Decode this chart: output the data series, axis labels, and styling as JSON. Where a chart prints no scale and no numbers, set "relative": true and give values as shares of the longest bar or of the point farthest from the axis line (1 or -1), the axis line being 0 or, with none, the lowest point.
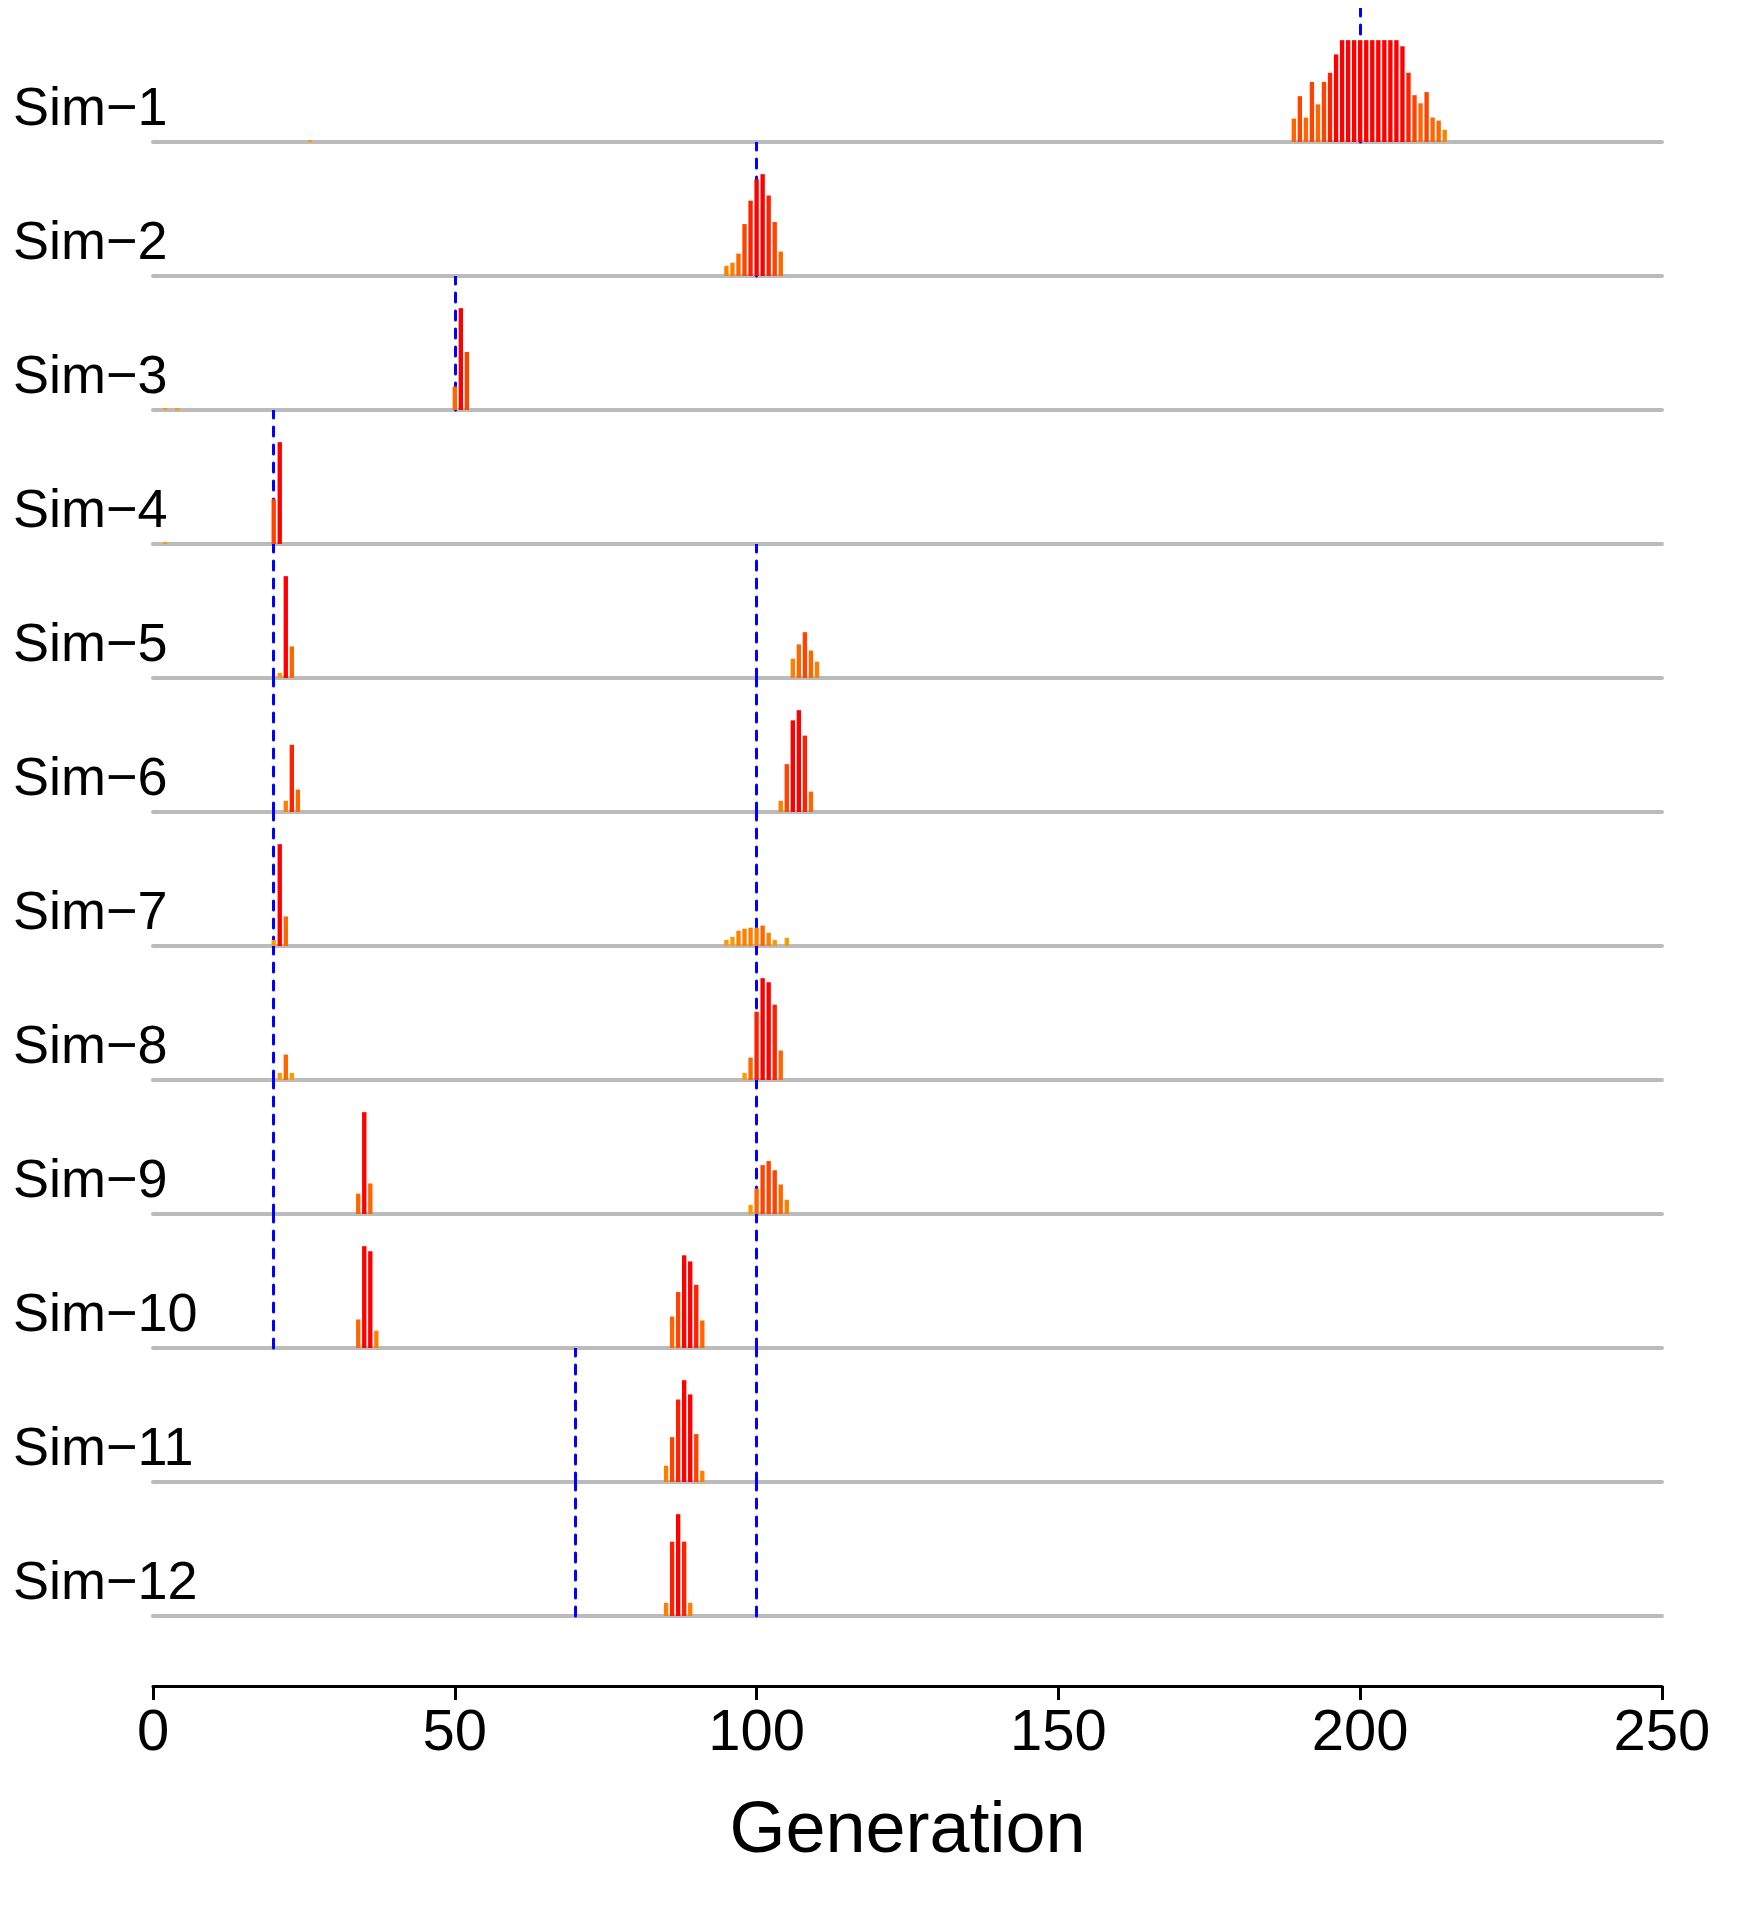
{
  "chart_data": [
    {
      "type": "bar",
      "title": "Sim−1",
      "relative": true,
      "xlim": [
        0,
        250
      ],
      "tick_labels": false,
      "x": [
        26,
        189,
        190,
        191,
        192,
        193,
        194,
        195,
        196,
        197,
        198,
        199,
        200,
        201,
        202,
        203,
        204,
        205,
        206,
        207,
        208,
        209,
        210,
        211,
        212,
        213,
        214
      ],
      "values": [
        0.02,
        0.23,
        0.45,
        0.24,
        0.59,
        0.37,
        0.59,
        0.68,
        0.86,
        1,
        1,
        1,
        1,
        1,
        1,
        1,
        1,
        1,
        1,
        0.94,
        0.68,
        0.46,
        0.38,
        0.49,
        0.24,
        0.21,
        0.12
      ],
      "colors": [
        "#ff9900",
        "#ff6600",
        "#ff4400",
        "#ff6600",
        "#ff4400",
        "#ff6600",
        "#ff4400",
        "#ff2200",
        "#ff0000",
        "#ff0000",
        "#ff0000",
        "#ff0000",
        "#ff0000",
        "#ff0000",
        "#ff0000",
        "#ff0000",
        "#ff0000",
        "#ff0000",
        "#ff0000",
        "#ff0000",
        "#ff2200",
        "#ff4400",
        "#ff6600",
        "#ff4400",
        "#ff6600",
        "#ff6600",
        "#ff8000"
      ],
      "ref_lines": [
        {
          "axis": "x",
          "value": 200,
          "color": "#0000ff",
          "line_style": "dashed"
        }
      ]
    },
    {
      "type": "bar",
      "title": "Sim−2",
      "relative": true,
      "xlim": [
        0,
        250
      ],
      "tick_labels": false,
      "x": [
        95,
        96,
        97,
        98,
        99,
        100,
        101,
        102,
        103,
        104
      ],
      "values": [
        0.1,
        0.13,
        0.22,
        0.51,
        0.74,
        0.95,
        1,
        0.79,
        0.53,
        0.24
      ],
      "colors": [
        "#ff8000",
        "#ff8000",
        "#ff6600",
        "#ff4400",
        "#ff2200",
        "#ff0000",
        "#ff0000",
        "#ff2200",
        "#ff4400",
        "#ff6600"
      ],
      "ref_lines": [
        {
          "axis": "x",
          "value": 100,
          "color": "#0000ff",
          "line_style": "dashed"
        }
      ]
    },
    {
      "type": "bar",
      "title": "Sim−3",
      "relative": true,
      "xlim": [
        0,
        250
      ],
      "tick_labels": false,
      "x": [
        2,
        4,
        50,
        51,
        52
      ],
      "values": [
        0.02,
        0.02,
        0.23,
        1,
        0.57
      ],
      "colors": [
        "#ff9900",
        "#ff9900",
        "#ff6600",
        "#ff0000",
        "#ff4400"
      ],
      "ref_lines": [
        {
          "axis": "x",
          "value": 50,
          "color": "#0000ff",
          "line_style": "dashed"
        }
      ]
    },
    {
      "type": "bar",
      "title": "Sim−4",
      "relative": true,
      "xlim": [
        0,
        250
      ],
      "tick_labels": false,
      "x": [
        2,
        20,
        21
      ],
      "values": [
        0.02,
        0.44,
        1
      ],
      "colors": [
        "#ff9900",
        "#ff4400",
        "#ff0000"
      ],
      "ref_lines": [
        {
          "axis": "x",
          "value": 20,
          "color": "#0000ff",
          "line_style": "dashed"
        }
      ]
    },
    {
      "type": "bar",
      "title": "Sim−5",
      "relative": true,
      "xlim": [
        0,
        250
      ],
      "tick_labels": false,
      "x": [
        21,
        22,
        23,
        106,
        107,
        108,
        109,
        110
      ],
      "values": [
        0.05,
        1,
        0.31,
        0.19,
        0.33,
        0.45,
        0.27,
        0.16
      ],
      "colors": [
        "#ff9900",
        "#ff0000",
        "#ff6600",
        "#ff8000",
        "#ff6600",
        "#ff4400",
        "#ff6600",
        "#ff8000"
      ],
      "ref_lines": [
        {
          "axis": "x",
          "value": 20,
          "color": "#0000ff",
          "line_style": "dashed"
        },
        {
          "axis": "x",
          "value": 100,
          "color": "#0000ff",
          "line_style": "dashed"
        }
      ]
    },
    {
      "type": "bar",
      "title": "Sim−6",
      "relative": true,
      "xlim": [
        0,
        250
      ],
      "tick_labels": false,
      "x": [
        22,
        23,
        24,
        104,
        105,
        106,
        107,
        108,
        109
      ],
      "values": [
        0.11,
        0.66,
        0.22,
        0.11,
        0.47,
        0.9,
        1,
        0.75,
        0.2
      ],
      "colors": [
        "#ff8000",
        "#ff2200",
        "#ff6600",
        "#ff8000",
        "#ff4400",
        "#ff0000",
        "#ff0000",
        "#ff2200",
        "#ff6600"
      ],
      "ref_lines": [
        {
          "axis": "x",
          "value": 20,
          "color": "#0000ff",
          "line_style": "dashed"
        },
        {
          "axis": "x",
          "value": 100,
          "color": "#0000ff",
          "line_style": "dashed"
        }
      ]
    },
    {
      "type": "bar",
      "title": "Sim−7",
      "relative": true,
      "xlim": [
        0,
        250
      ],
      "tick_labels": false,
      "x": [
        20,
        21,
        22,
        95,
        96,
        97,
        98,
        99,
        100,
        101,
        102,
        103,
        105
      ],
      "values": [
        0.06,
        1,
        0.29,
        0.06,
        0.09,
        0.15,
        0.17,
        0.18,
        0.18,
        0.2,
        0.13,
        0.06,
        0.08
      ],
      "colors": [
        "#ff9900",
        "#ff0000",
        "#ff6600",
        "#ff9900",
        "#ff9900",
        "#ff8000",
        "#ff8000",
        "#ff8000",
        "#ff8000",
        "#ff6600",
        "#ff8000",
        "#ff9900",
        "#ff9900"
      ],
      "ref_lines": [
        {
          "axis": "x",
          "value": 20,
          "color": "#0000ff",
          "line_style": "dashed"
        },
        {
          "axis": "x",
          "value": 100,
          "color": "#0000ff",
          "line_style": "dashed"
        }
      ]
    },
    {
      "type": "bar",
      "title": "Sim−8",
      "relative": true,
      "xlim": [
        0,
        250
      ],
      "tick_labels": false,
      "x": [
        21,
        22,
        23,
        98,
        99,
        100,
        101,
        102,
        103,
        104
      ],
      "values": [
        0.07,
        0.25,
        0.07,
        0.07,
        0.22,
        0.67,
        1,
        0.96,
        0.74,
        0.29
      ],
      "colors": [
        "#ff9900",
        "#ff6600",
        "#ff9900",
        "#ff9900",
        "#ff6600",
        "#ff2200",
        "#ff0000",
        "#ff0000",
        "#ff2200",
        "#ff6600"
      ],
      "ref_lines": [
        {
          "axis": "x",
          "value": 20,
          "color": "#0000ff",
          "line_style": "dashed"
        },
        {
          "axis": "x",
          "value": 100,
          "color": "#0000ff",
          "line_style": "dashed"
        }
      ]
    },
    {
      "type": "bar",
      "title": "Sim−9",
      "relative": true,
      "xlim": [
        0,
        250
      ],
      "tick_labels": false,
      "x": [
        34,
        35,
        36,
        99,
        100,
        101,
        102,
        103,
        104,
        105
      ],
      "values": [
        0.2,
        1,
        0.3,
        0.09,
        0.25,
        0.48,
        0.52,
        0.43,
        0.29,
        0.14
      ],
      "colors": [
        "#ff6600",
        "#ff0000",
        "#ff6600",
        "#ff9900",
        "#ff6600",
        "#ff4400",
        "#ff4400",
        "#ff4400",
        "#ff6600",
        "#ff8000"
      ],
      "ref_lines": [
        {
          "axis": "x",
          "value": 20,
          "color": "#0000ff",
          "line_style": "dashed"
        },
        {
          "axis": "x",
          "value": 100,
          "color": "#0000ff",
          "line_style": "dashed"
        }
      ]
    },
    {
      "type": "bar",
      "title": "Sim−10",
      "relative": true,
      "xlim": [
        0,
        250
      ],
      "tick_labels": false,
      "x": [
        34,
        35,
        36,
        37,
        86,
        87,
        88,
        89,
        90,
        91
      ],
      "values": [
        0.28,
        1,
        0.95,
        0.17,
        0.31,
        0.55,
        0.91,
        0.85,
        0.62,
        0.27
      ],
      "colors": [
        "#ff6600",
        "#ff0000",
        "#ff0000",
        "#ff8000",
        "#ff6600",
        "#ff4400",
        "#ff0000",
        "#ff0000",
        "#ff2200",
        "#ff6600"
      ],
      "ref_lines": [
        {
          "axis": "x",
          "value": 20,
          "color": "#0000ff",
          "line_style": "dashed"
        },
        {
          "axis": "x",
          "value": 100,
          "color": "#0000ff",
          "line_style": "dashed"
        }
      ]
    },
    {
      "type": "bar",
      "title": "Sim−11",
      "relative": true,
      "xlim": [
        0,
        250
      ],
      "tick_labels": false,
      "x": [
        85,
        86,
        87,
        88,
        89,
        90,
        91
      ],
      "values": [
        0.16,
        0.44,
        0.81,
        1,
        0.86,
        0.47,
        0.11
      ],
      "colors": [
        "#ff8000",
        "#ff4400",
        "#ff2200",
        "#ff0000",
        "#ff0000",
        "#ff4400",
        "#ff8000"
      ],
      "ref_lines": [
        {
          "axis": "x",
          "value": 70,
          "color": "#0000ff",
          "line_style": "dashed"
        },
        {
          "axis": "x",
          "value": 100,
          "color": "#0000ff",
          "line_style": "dashed"
        }
      ]
    },
    {
      "type": "bar",
      "title": "Sim−12",
      "relative": true,
      "xlim": [
        0,
        250
      ],
      "xticks": [
        0,
        50,
        100,
        150,
        200,
        250
      ],
      "xlabel": "Generation",
      "x": [
        85,
        86,
        87,
        88,
        89
      ],
      "values": [
        0.13,
        0.73,
        1,
        0.73,
        0.13
      ],
      "colors": [
        "#ff8000",
        "#ff2200",
        "#ff0000",
        "#ff2200",
        "#ff8000"
      ],
      "ref_lines": [
        {
          "axis": "x",
          "value": 70,
          "color": "#0000ff",
          "line_style": "dashed"
        },
        {
          "axis": "x",
          "value": 100,
          "color": "#0000ff",
          "line_style": "dashed"
        }
      ]
    }
  ]
}
